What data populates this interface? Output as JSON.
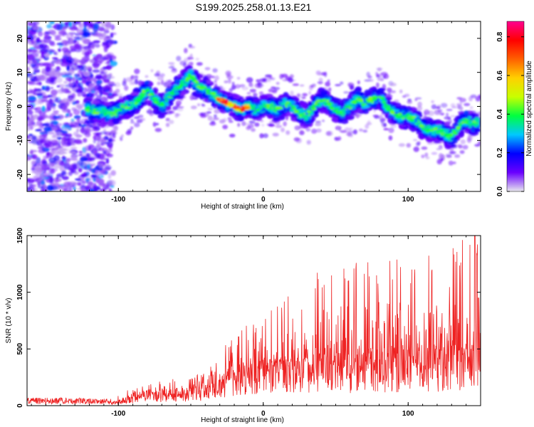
{
  "title": "S199.2025.258.01.13.E21",
  "chart_data": [
    {
      "type": "heatmap",
      "xlabel": "Height of straight line (km)",
      "ylabel": "Frequency (Hz)",
      "xlim": [
        -163,
        150
      ],
      "ylim": [
        -25,
        25
      ],
      "xticks": [
        -100,
        0,
        100
      ],
      "yticks": [
        -20,
        -10,
        0,
        10,
        20
      ],
      "colorbar": {
        "label": "Normalized spectral amplitude",
        "range": [
          0,
          0.88
        ],
        "ticks": [
          "0.0",
          "0.2",
          "0.4",
          "0.6",
          "0.8"
        ],
        "tick_values": [
          0.0,
          0.2,
          0.4,
          0.6,
          0.8
        ],
        "colors": [
          "#e8e8ee",
          "#6a00ff",
          "#0000ff",
          "#00c8ff",
          "#00ff40",
          "#c8ff00",
          "#ffd000",
          "#ff6000",
          "#ff0000",
          "#ff0090"
        ]
      },
      "ridge": {
        "x": [
          -120,
          -112,
          -104,
          -97,
          -92,
          -86,
          -80,
          -75,
          -70,
          -65,
          -60,
          -55,
          -50,
          -45,
          -40,
          -36,
          -30,
          -25,
          -20,
          -15,
          -10,
          -5,
          0,
          5,
          10,
          15,
          20,
          25,
          30,
          35,
          40,
          45,
          50,
          55,
          60,
          65,
          70,
          75,
          80,
          85,
          90,
          95,
          100,
          105,
          110,
          115,
          120,
          125,
          130,
          135,
          140,
          145
        ],
        "y": [
          -1,
          -1.5,
          -2,
          -0.5,
          0,
          2,
          5,
          2,
          0,
          3,
          5,
          7,
          9,
          6,
          5,
          4,
          2,
          1,
          0,
          -1,
          0,
          -1,
          0,
          0,
          -1,
          1,
          0,
          -2,
          -3,
          0,
          2,
          1,
          -1,
          -2,
          0,
          2,
          1,
          2,
          3,
          0,
          -2,
          -3,
          -3,
          -4,
          -6,
          -7,
          -7,
          -8,
          -9,
          -6,
          -4,
          -5
        ]
      },
      "ridge_peak_amplitude": 0.85
    },
    {
      "type": "line",
      "color": "#ee2222",
      "xlabel": "Height of straight line (km)",
      "ylabel": "SNR (10 * v/v)",
      "xlim": [
        -163,
        150
      ],
      "ylim": [
        0,
        1500
      ],
      "xticks": [
        -100,
        0,
        100
      ],
      "yticks": [
        0,
        500,
        1000,
        1500
      ],
      "envelope": {
        "x": [
          -163,
          -130,
          -105,
          -95,
          -80,
          -65,
          -50,
          -40,
          -30,
          -20,
          -10,
          0,
          10,
          20,
          30,
          40,
          50,
          60,
          70,
          80,
          90,
          100,
          110,
          120,
          130,
          140,
          150
        ],
        "baseline": [
          25,
          25,
          20,
          50,
          90,
          110,
          120,
          130,
          180,
          260,
          290,
          300,
          320,
          320,
          330,
          330,
          340,
          350,
          360,
          370,
          380,
          390,
          400,
          410,
          420,
          430,
          440
        ],
        "peak": [
          70,
          70,
          60,
          130,
          190,
          230,
          260,
          300,
          480,
          650,
          720,
          750,
          920,
          1100,
          1250,
          1250,
          1260,
          1270,
          1280,
          1300,
          1330,
          1300,
          1330,
          1350,
          1380,
          1500,
          1400
        ]
      },
      "maximum": {
        "x": 146,
        "y": 1500
      }
    }
  ]
}
